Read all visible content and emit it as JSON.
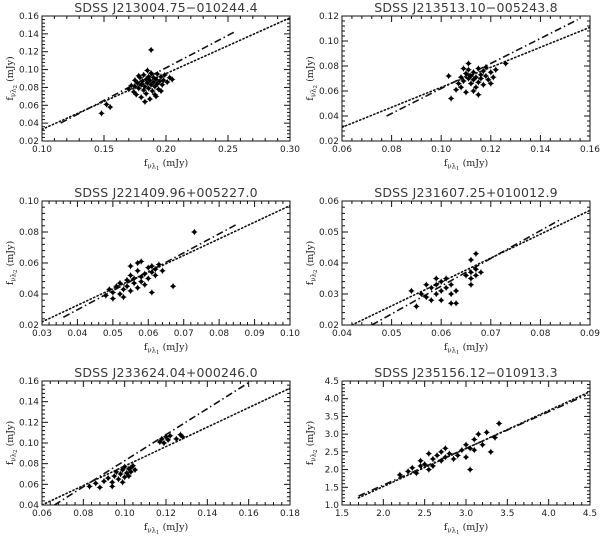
{
  "figure": {
    "axis_labels": {
      "x": "f_{νλ1} (mJy)",
      "y": "f_{νλ2} (mJy)"
    }
  },
  "chart_data": [
    {
      "type": "scatter",
      "title": "SDSS J213004.75−010244.4",
      "xlabel": "f_{νλ1} (mJy)",
      "ylabel": "f_{νλ2} (mJy)",
      "xlim": [
        0.1,
        0.3
      ],
      "ylim": [
        0.02,
        0.16
      ],
      "xticks": [
        0.1,
        0.15,
        0.2,
        0.25,
        0.3
      ],
      "yticks": [
        0.02,
        0.04,
        0.06,
        0.08,
        0.1,
        0.12,
        0.14,
        0.16
      ],
      "tick_decimals": 2,
      "points": [
        [
          0.152,
          0.061
        ],
        [
          0.155,
          0.058
        ],
        [
          0.148,
          0.051
        ],
        [
          0.17,
          0.078
        ],
        [
          0.172,
          0.082
        ],
        [
          0.174,
          0.075
        ],
        [
          0.175,
          0.088
        ],
        [
          0.176,
          0.072
        ],
        [
          0.177,
          0.085
        ],
        [
          0.178,
          0.079
        ],
        [
          0.179,
          0.091
        ],
        [
          0.18,
          0.083
        ],
        [
          0.18,
          0.069
        ],
        [
          0.181,
          0.087
        ],
        [
          0.182,
          0.077
        ],
        [
          0.182,
          0.094
        ],
        [
          0.183,
          0.081
        ],
        [
          0.184,
          0.089
        ],
        [
          0.184,
          0.073
        ],
        [
          0.185,
          0.085
        ],
        [
          0.186,
          0.092
        ],
        [
          0.186,
          0.079
        ],
        [
          0.187,
          0.067
        ],
        [
          0.187,
          0.088
        ],
        [
          0.188,
          0.083
        ],
        [
          0.188,
          0.096
        ],
        [
          0.189,
          0.076
        ],
        [
          0.19,
          0.086
        ],
        [
          0.19,
          0.091
        ],
        [
          0.191,
          0.081
        ],
        [
          0.191,
          0.072
        ],
        [
          0.192,
          0.089
        ],
        [
          0.193,
          0.084
        ],
        [
          0.193,
          0.095
        ],
        [
          0.194,
          0.078
        ],
        [
          0.195,
          0.087
        ],
        [
          0.196,
          0.092
        ],
        [
          0.197,
          0.083
        ],
        [
          0.198,
          0.088
        ],
        [
          0.199,
          0.094
        ],
        [
          0.201,
          0.086
        ],
        [
          0.203,
          0.091
        ],
        [
          0.188,
          0.122
        ],
        [
          0.178,
          0.093
        ],
        [
          0.183,
          0.064
        ],
        [
          0.192,
          0.07
        ],
        [
          0.175,
          0.081
        ],
        [
          0.196,
          0.076
        ],
        [
          0.205,
          0.089
        ],
        [
          0.185,
          0.099
        ]
      ],
      "lines": [
        {
          "style": "dotted",
          "x": [
            0.1,
            0.3
          ],
          "y": [
            0.033,
            0.158
          ]
        },
        {
          "style": "dashdot",
          "x": [
            0.115,
            0.255
          ],
          "y": [
            0.04,
            0.142
          ]
        }
      ]
    },
    {
      "type": "scatter",
      "title": "SDSS J213513.10−005243.8",
      "xlabel": "f_{νλ1} (mJy)",
      "ylabel": "f_{νλ2} (mJy)",
      "xlim": [
        0.06,
        0.16
      ],
      "ylim": [
        0.02,
        0.12
      ],
      "xticks": [
        0.06,
        0.08,
        0.1,
        0.12,
        0.14,
        0.16
      ],
      "yticks": [
        0.02,
        0.04,
        0.06,
        0.08,
        0.1,
        0.12
      ],
      "tick_decimals": 2,
      "points": [
        [
          0.104,
          0.054
        ],
        [
          0.106,
          0.061
        ],
        [
          0.107,
          0.066
        ],
        [
          0.108,
          0.071
        ],
        [
          0.108,
          0.063
        ],
        [
          0.109,
          0.068
        ],
        [
          0.11,
          0.074
        ],
        [
          0.11,
          0.059
        ],
        [
          0.111,
          0.07
        ],
        [
          0.111,
          0.077
        ],
        [
          0.112,
          0.066
        ],
        [
          0.112,
          0.072
        ],
        [
          0.113,
          0.069
        ],
        [
          0.113,
          0.075
        ],
        [
          0.114,
          0.063
        ],
        [
          0.114,
          0.071
        ],
        [
          0.115,
          0.078
        ],
        [
          0.115,
          0.067
        ],
        [
          0.116,
          0.073
        ],
        [
          0.116,
          0.07
        ],
        [
          0.117,
          0.076
        ],
        [
          0.117,
          0.065
        ],
        [
          0.118,
          0.072
        ],
        [
          0.119,
          0.069
        ],
        [
          0.12,
          0.075
        ],
        [
          0.121,
          0.071
        ],
        [
          0.118,
          0.079
        ],
        [
          0.113,
          0.06
        ],
        [
          0.109,
          0.078
        ],
        [
          0.12,
          0.066
        ],
        [
          0.122,
          0.077
        ],
        [
          0.126,
          0.082
        ],
        [
          0.103,
          0.072
        ],
        [
          0.111,
          0.082
        ],
        [
          0.115,
          0.057
        ]
      ],
      "lines": [
        {
          "style": "dotted",
          "x": [
            0.06,
            0.16
          ],
          "y": [
            0.031,
            0.111
          ]
        },
        {
          "style": "dashdot",
          "x": [
            0.078,
            0.155
          ],
          "y": [
            0.04,
            0.117
          ]
        }
      ]
    },
    {
      "type": "scatter",
      "title": "SDSS J221409.96+005227.0",
      "xlabel": "f_{νλ1} (mJy)",
      "ylabel": "f_{νλ2} (mJy)",
      "xlim": [
        0.03,
        0.1
      ],
      "ylim": [
        0.02,
        0.1
      ],
      "xticks": [
        0.03,
        0.04,
        0.05,
        0.06,
        0.07,
        0.08,
        0.09,
        0.1
      ],
      "yticks": [
        0.02,
        0.04,
        0.06,
        0.08,
        0.1
      ],
      "tick_decimals": 2,
      "points": [
        [
          0.048,
          0.039
        ],
        [
          0.049,
          0.043
        ],
        [
          0.05,
          0.041
        ],
        [
          0.051,
          0.045
        ],
        [
          0.052,
          0.047
        ],
        [
          0.052,
          0.04
        ],
        [
          0.053,
          0.043
        ],
        [
          0.054,
          0.049
        ],
        [
          0.054,
          0.045
        ],
        [
          0.055,
          0.042
        ],
        [
          0.055,
          0.052
        ],
        [
          0.056,
          0.047
        ],
        [
          0.056,
          0.05
        ],
        [
          0.057,
          0.044
        ],
        [
          0.057,
          0.055
        ],
        [
          0.058,
          0.051
        ],
        [
          0.058,
          0.048
        ],
        [
          0.059,
          0.053
        ],
        [
          0.059,
          0.046
        ],
        [
          0.06,
          0.057
        ],
        [
          0.06,
          0.05
        ],
        [
          0.061,
          0.054
        ],
        [
          0.061,
          0.058
        ],
        [
          0.062,
          0.052
        ],
        [
          0.062,
          0.056
        ],
        [
          0.063,
          0.059
        ],
        [
          0.058,
          0.061
        ],
        [
          0.055,
          0.058
        ],
        [
          0.053,
          0.038
        ],
        [
          0.05,
          0.037
        ],
        [
          0.064,
          0.055
        ],
        [
          0.061,
          0.041
        ],
        [
          0.067,
          0.045
        ],
        [
          0.073,
          0.08
        ],
        [
          0.057,
          0.06
        ]
      ],
      "lines": [
        {
          "style": "dotted",
          "x": [
            0.03,
            0.1
          ],
          "y": [
            0.022,
            0.097
          ]
        },
        {
          "style": "dashdot",
          "x": [
            0.036,
            0.085
          ],
          "y": [
            0.025,
            0.085
          ]
        }
      ]
    },
    {
      "type": "scatter",
      "title": "SDSS J231607.25+010012.9",
      "xlabel": "f_{νλ1} (mJy)",
      "ylabel": "f_{νλ2} (mJy)",
      "xlim": [
        0.04,
        0.09
      ],
      "ylim": [
        0.02,
        0.06
      ],
      "xticks": [
        0.04,
        0.05,
        0.06,
        0.07,
        0.08,
        0.09
      ],
      "yticks": [
        0.02,
        0.03,
        0.04,
        0.05,
        0.06
      ],
      "tick_decimals": 2,
      "points": [
        [
          0.054,
          0.031
        ],
        [
          0.056,
          0.03
        ],
        [
          0.057,
          0.029
        ],
        [
          0.058,
          0.032
        ],
        [
          0.058,
          0.028
        ],
        [
          0.059,
          0.033
        ],
        [
          0.059,
          0.03
        ],
        [
          0.06,
          0.031
        ],
        [
          0.06,
          0.034
        ],
        [
          0.06,
          0.028
        ],
        [
          0.061,
          0.032
        ],
        [
          0.061,
          0.035
        ],
        [
          0.062,
          0.03
        ],
        [
          0.062,
          0.033
        ],
        [
          0.063,
          0.031
        ],
        [
          0.063,
          0.027
        ],
        [
          0.057,
          0.033
        ],
        [
          0.055,
          0.026
        ],
        [
          0.065,
          0.036
        ],
        [
          0.066,
          0.037
        ],
        [
          0.066,
          0.035
        ],
        [
          0.067,
          0.038
        ],
        [
          0.067,
          0.036
        ],
        [
          0.068,
          0.037
        ],
        [
          0.066,
          0.041
        ],
        [
          0.067,
          0.043
        ],
        [
          0.066,
          0.033
        ],
        [
          0.062,
          0.027
        ],
        [
          0.059,
          0.035
        ]
      ],
      "lines": [
        {
          "style": "dotted",
          "x": [
            0.042,
            0.09
          ],
          "y": [
            0.02,
            0.057
          ]
        },
        {
          "style": "dashdot",
          "x": [
            0.046,
            0.084
          ],
          "y": [
            0.02,
            0.054
          ]
        }
      ]
    },
    {
      "type": "scatter",
      "title": "SDSS J233624.04+000246.0",
      "xlabel": "f_{νλ1} (mJy)",
      "ylabel": "f_{νλ2} (mJy)",
      "xlim": [
        0.06,
        0.18
      ],
      "ylim": [
        0.04,
        0.16
      ],
      "xticks": [
        0.06,
        0.08,
        0.1,
        0.12,
        0.14,
        0.16,
        0.18
      ],
      "yticks": [
        0.04,
        0.06,
        0.08,
        0.1,
        0.12,
        0.14,
        0.16
      ],
      "tick_decimals": 2,
      "points": [
        [
          0.083,
          0.058
        ],
        [
          0.086,
          0.061
        ],
        [
          0.088,
          0.057
        ],
        [
          0.09,
          0.063
        ],
        [
          0.092,
          0.066
        ],
        [
          0.094,
          0.062
        ],
        [
          0.095,
          0.068
        ],
        [
          0.096,
          0.072
        ],
        [
          0.097,
          0.065
        ],
        [
          0.098,
          0.07
        ],
        [
          0.099,
          0.074
        ],
        [
          0.1,
          0.067
        ],
        [
          0.1,
          0.077
        ],
        [
          0.101,
          0.071
        ],
        [
          0.102,
          0.075
        ],
        [
          0.102,
          0.068
        ],
        [
          0.103,
          0.072
        ],
        [
          0.104,
          0.078
        ],
        [
          0.099,
          0.062
        ],
        [
          0.094,
          0.058
        ],
        [
          0.117,
          0.101
        ],
        [
          0.118,
          0.104
        ],
        [
          0.119,
          0.1
        ],
        [
          0.12,
          0.106
        ],
        [
          0.121,
          0.103
        ],
        [
          0.122,
          0.107
        ],
        [
          0.125,
          0.104
        ],
        [
          0.127,
          0.108
        ],
        [
          0.128,
          0.106
        ],
        [
          0.105,
          0.074
        ],
        [
          0.103,
          0.076
        ]
      ],
      "lines": [
        {
          "style": "dotted",
          "x": [
            0.06,
            0.18
          ],
          "y": [
            0.04,
            0.153
          ]
        },
        {
          "style": "dashdot",
          "x": [
            0.066,
            0.162
          ],
          "y": [
            0.04,
            0.161
          ]
        }
      ]
    },
    {
      "type": "scatter",
      "title": "SDSS J235156.12−010913.3",
      "xlabel": "f_{νλ1} (mJy)",
      "ylabel": "f_{νλ2} (mJy)",
      "xlim": [
        1.5,
        4.5
      ],
      "ylim": [
        1.0,
        4.5
      ],
      "xticks": [
        1.5,
        2.0,
        2.5,
        3.0,
        3.5,
        4.0,
        4.5
      ],
      "yticks": [
        1.0,
        1.5,
        2.0,
        2.5,
        3.0,
        3.5,
        4.0,
        4.5
      ],
      "tick_decimals": 1,
      "points": [
        [
          2.2,
          1.85
        ],
        [
          2.3,
          1.95
        ],
        [
          2.35,
          2.05
        ],
        [
          2.4,
          1.9
        ],
        [
          2.45,
          2.1
        ],
        [
          2.5,
          2.15
        ],
        [
          2.55,
          2.0
        ],
        [
          2.6,
          2.3
        ],
        [
          2.6,
          2.1
        ],
        [
          2.65,
          2.4
        ],
        [
          2.7,
          2.25
        ],
        [
          2.7,
          2.5
        ],
        [
          2.75,
          2.35
        ],
        [
          2.8,
          2.45
        ],
        [
          2.55,
          2.45
        ],
        [
          2.45,
          2.25
        ],
        [
          2.85,
          2.3
        ],
        [
          2.9,
          2.4
        ],
        [
          2.95,
          2.55
        ],
        [
          3.0,
          2.7
        ],
        [
          3.05,
          2.6
        ],
        [
          3.1,
          2.85
        ],
        [
          3.1,
          2.55
        ],
        [
          3.15,
          3.0
        ],
        [
          3.2,
          2.7
        ],
        [
          3.25,
          3.05
        ],
        [
          3.3,
          2.5
        ],
        [
          3.35,
          2.9
        ],
        [
          3.4,
          3.3
        ],
        [
          3.05,
          2.0
        ],
        [
          2.75,
          2.6
        ],
        [
          3.0,
          2.35
        ]
      ],
      "lines": [
        {
          "style": "dotted",
          "x": [
            1.7,
            4.5
          ],
          "y": [
            1.2,
            4.2
          ]
        },
        {
          "style": "dashdot",
          "x": [
            1.7,
            4.45
          ],
          "y": [
            1.25,
            4.1
          ]
        }
      ]
    }
  ]
}
